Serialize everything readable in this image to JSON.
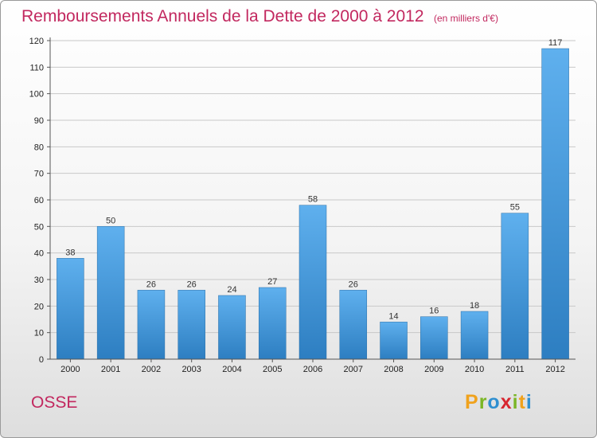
{
  "chart_data": {
    "type": "bar",
    "title": "Remboursements Annuels de la Dette de 2000 à 2012",
    "subtitle": "(en milliers d'€)",
    "categories": [
      "2000",
      "2001",
      "2002",
      "2003",
      "2004",
      "2005",
      "2006",
      "2007",
      "2008",
      "2009",
      "2010",
      "2011",
      "2012"
    ],
    "values": [
      38,
      50,
      26,
      26,
      24,
      27,
      58,
      26,
      14,
      16,
      18,
      55,
      117
    ],
    "ylim": [
      0,
      120
    ],
    "yticks": [
      0,
      10,
      20,
      30,
      40,
      50,
      60,
      70,
      80,
      90,
      100,
      110,
      120
    ],
    "grid": true,
    "bar_color": "#3a8fd3"
  },
  "commune": "OSSE",
  "logo": {
    "letters": [
      "P",
      "r",
      "o",
      "x",
      "i",
      "t",
      "i"
    ],
    "colors": [
      "#f0a21d",
      "#7bb626",
      "#2f8fd0",
      "#d7262f",
      "#7bb626",
      "#f0a21d",
      "#2f8fd0"
    ]
  }
}
